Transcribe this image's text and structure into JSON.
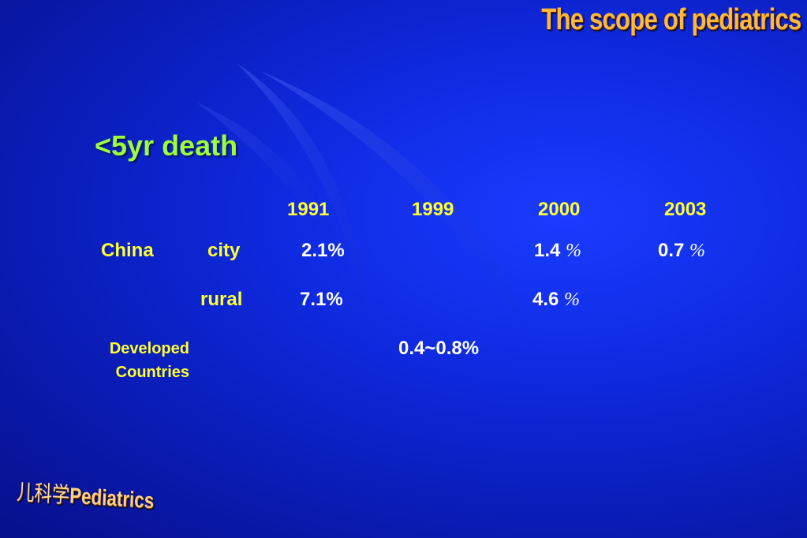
{
  "slide": {
    "title": "The scope of pediatrics",
    "heading": "<5yr death",
    "footer_cn": "儿科学",
    "footer_en": "Pediatrics"
  },
  "table": {
    "years": [
      "1991",
      "1999",
      "2000",
      "2003"
    ],
    "china_label": "China",
    "city": {
      "label": "city",
      "v1991": "2.1%",
      "v2000": "1.4 ",
      "v2003": "0.7 "
    },
    "rural": {
      "label": "rural",
      "v1991": "7.1%",
      "v2000": "4.6 "
    },
    "pct_glyph": "%",
    "developed": {
      "label_line1": "Developed",
      "label_line2": "Countries",
      "v1999": "0.4~0.8%"
    }
  },
  "colors": {
    "background": "#0f2ae0",
    "title": "#ffb83a",
    "heading": "#9dff3a",
    "labels": "#ffff33",
    "values": "#ffffff"
  }
}
